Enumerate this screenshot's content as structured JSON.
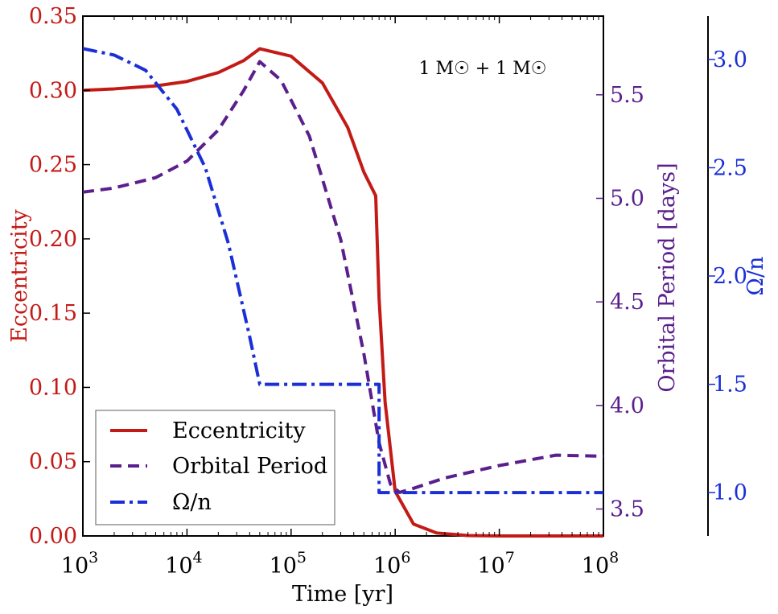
{
  "chart_data": {
    "type": "line",
    "xlabel": "Time [yr]",
    "xscale": "log",
    "xlim": [
      1000,
      100000000
    ],
    "x_ticks": [
      {
        "value": 1000,
        "base": "10",
        "exp": "3"
      },
      {
        "value": 10000,
        "base": "10",
        "exp": "4"
      },
      {
        "value": 100000,
        "base": "10",
        "exp": "5"
      },
      {
        "value": 1000000,
        "base": "10",
        "exp": "6"
      },
      {
        "value": 10000000,
        "base": "10",
        "exp": "7"
      },
      {
        "value": 100000000,
        "base": "10",
        "exp": "8"
      }
    ],
    "annotation": {
      "text": "1 M☉ + 1 M☉",
      "position": "top-right"
    },
    "axes": {
      "left": {
        "label": "Eccentricity",
        "color": "#c41a16",
        "ylim": [
          0,
          0.35
        ],
        "ticks": [
          "0.00",
          "0.05",
          "0.10",
          "0.15",
          "0.20",
          "0.25",
          "0.30",
          "0.35"
        ]
      },
      "right1": {
        "label": "Orbital Period [days]",
        "color": "#5a1f8c",
        "ylim": [
          3.37,
          5.88
        ],
        "ticks": [
          "3.5",
          "4.0",
          "4.5",
          "5.0",
          "5.5"
        ]
      },
      "right2": {
        "label": "Ω/n",
        "color": "#1a2fd6",
        "ylim": [
          0.8,
          3.2
        ],
        "ticks": [
          "1.0",
          "1.5",
          "2.0",
          "2.5",
          "3.0"
        ]
      }
    },
    "legend": {
      "placement": "lower-left",
      "entries": [
        "Eccentricity",
        "Orbital Period",
        "Ω/n"
      ]
    },
    "series": [
      {
        "name": "Eccentricity",
        "axis": "left",
        "style": "solid",
        "color": "#c41a16",
        "points": [
          [
            1000,
            0.3
          ],
          [
            2000,
            0.301
          ],
          [
            5000,
            0.303
          ],
          [
            10000,
            0.306
          ],
          [
            20000,
            0.312
          ],
          [
            35000,
            0.32
          ],
          [
            50000,
            0.328
          ],
          [
            100000,
            0.323
          ],
          [
            200000,
            0.305
          ],
          [
            350000,
            0.275
          ],
          [
            500000,
            0.245
          ],
          [
            650000,
            0.229
          ],
          [
            700000,
            0.16
          ],
          [
            800000,
            0.09
          ],
          [
            1000000,
            0.03
          ],
          [
            1500000,
            0.008
          ],
          [
            2500000,
            0.002
          ],
          [
            5000000,
            0.0003
          ],
          [
            10000000,
            0.0
          ],
          [
            100000000,
            0.0
          ]
        ]
      },
      {
        "name": "Orbital Period",
        "axis": "right1",
        "style": "dashed",
        "color": "#5a1f8c",
        "points": [
          [
            1000,
            5.03
          ],
          [
            2000,
            5.05
          ],
          [
            5000,
            5.1
          ],
          [
            10000,
            5.18
          ],
          [
            20000,
            5.33
          ],
          [
            35000,
            5.52
          ],
          [
            50000,
            5.66
          ],
          [
            80000,
            5.57
          ],
          [
            150000,
            5.3
          ],
          [
            300000,
            4.8
          ],
          [
            500000,
            4.25
          ],
          [
            700000,
            3.82
          ],
          [
            900000,
            3.62
          ],
          [
            1100000,
            3.58
          ],
          [
            1500000,
            3.6
          ],
          [
            3000000,
            3.65
          ],
          [
            10000000,
            3.71
          ],
          [
            35000000,
            3.76
          ],
          [
            100000000,
            3.755
          ]
        ]
      },
      {
        "name": "Ω/n",
        "axis": "right2",
        "style": "dashdot",
        "color": "#1a2fd6",
        "points": [
          [
            1000,
            3.05
          ],
          [
            2000,
            3.02
          ],
          [
            4000,
            2.95
          ],
          [
            8000,
            2.77
          ],
          [
            15000,
            2.5
          ],
          [
            25000,
            2.15
          ],
          [
            40000,
            1.72
          ],
          [
            50000,
            1.5
          ],
          [
            600000,
            1.5
          ],
          [
            700000,
            1.5
          ],
          [
            700000,
            1.0
          ],
          [
            100000000,
            1.0
          ]
        ]
      }
    ]
  }
}
